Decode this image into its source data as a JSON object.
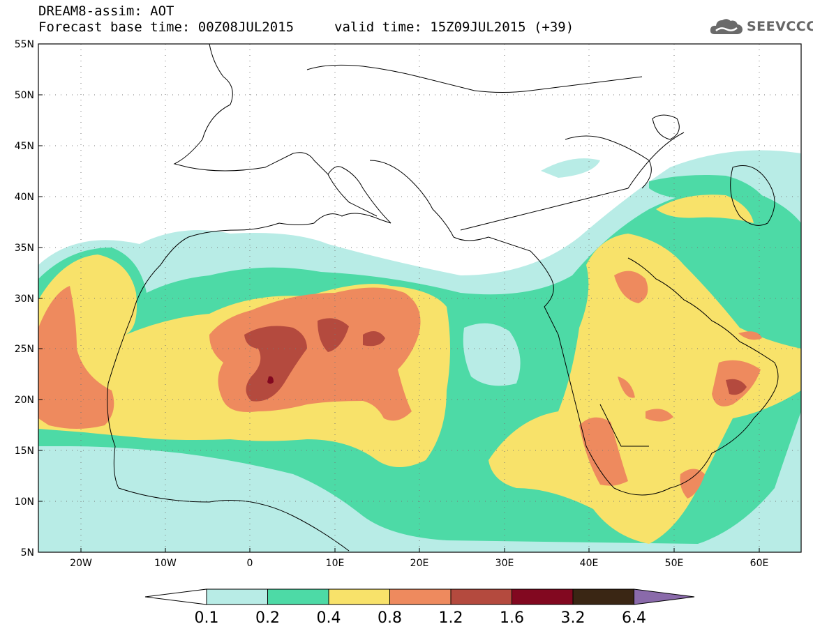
{
  "header": {
    "title": "DREAM8-assim: AOT",
    "base_time": "Forecast base time: 00Z08JUL2015",
    "valid_time": "valid time: 15Z09JUL2015 (+39)",
    "logo_text": "SEEVCCC",
    "logo_icon": "cloud-icon"
  },
  "map": {
    "lon_range": [
      -25,
      65
    ],
    "lat_range": [
      5,
      55
    ],
    "lat_ticks": [
      "55N",
      "50N",
      "45N",
      "40N",
      "35N",
      "30N",
      "25N",
      "20N",
      "15N",
      "10N",
      "5N"
    ],
    "lon_ticks": [
      "20W",
      "10W",
      "0",
      "10E",
      "20E",
      "30E",
      "40E",
      "50E",
      "60E"
    ],
    "grid": "dotted",
    "variable": "Aerosol optical thickness (dust)"
  },
  "colorbar": {
    "labels": [
      "0.1",
      "0.2",
      "0.4",
      "0.8",
      "1.2",
      "1.6",
      "3.2",
      "6.4"
    ],
    "colors": [
      "#ffffff",
      "#b8ece6",
      "#4ddaa6",
      "#f8e26a",
      "#ee8a5e",
      "#b44a3e",
      "#820820",
      "#3a2614",
      "#8a6aaa"
    ],
    "extend": "both"
  }
}
